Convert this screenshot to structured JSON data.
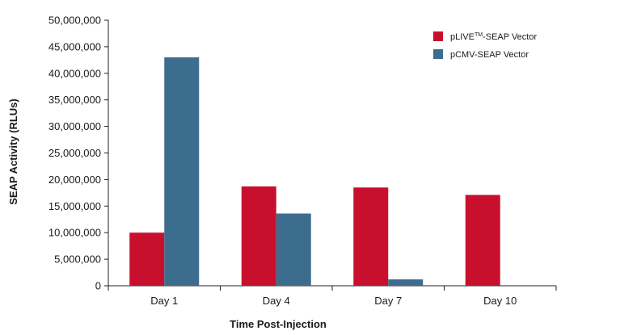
{
  "chart_data": {
    "type": "bar",
    "title": "",
    "xlabel": "Time Post-Injection",
    "ylabel": "SEAP Activity (RLUs)",
    "categories": [
      "Day 1",
      "Day 4",
      "Day 7",
      "Day 10"
    ],
    "ylim": [
      0,
      50000000
    ],
    "yticks": [
      0,
      5000000,
      10000000,
      15000000,
      20000000,
      25000000,
      30000000,
      35000000,
      40000000,
      45000000,
      50000000
    ],
    "ytick_labels": [
      "0",
      "5,000,000",
      "10,000,000",
      "15,000,000",
      "20,000,000",
      "25,000,000",
      "30,000,000",
      "35,000,000",
      "40,000,000",
      "45,000,000",
      "50,000,000"
    ],
    "series": [
      {
        "name": "pLIVE™-SEAP Vector",
        "name_main": "pLIVE",
        "name_sup": "TM",
        "name_rest": "-SEAP Vector",
        "color": "#c8102e",
        "values": [
          10000000,
          18700000,
          18500000,
          17100000
        ]
      },
      {
        "name": "pCMV-SEAP Vector",
        "color": "#3d6d8e",
        "values": [
          43000000,
          13600000,
          1200000,
          0
        ]
      }
    ],
    "grid": false,
    "legend_position": "top-right"
  }
}
